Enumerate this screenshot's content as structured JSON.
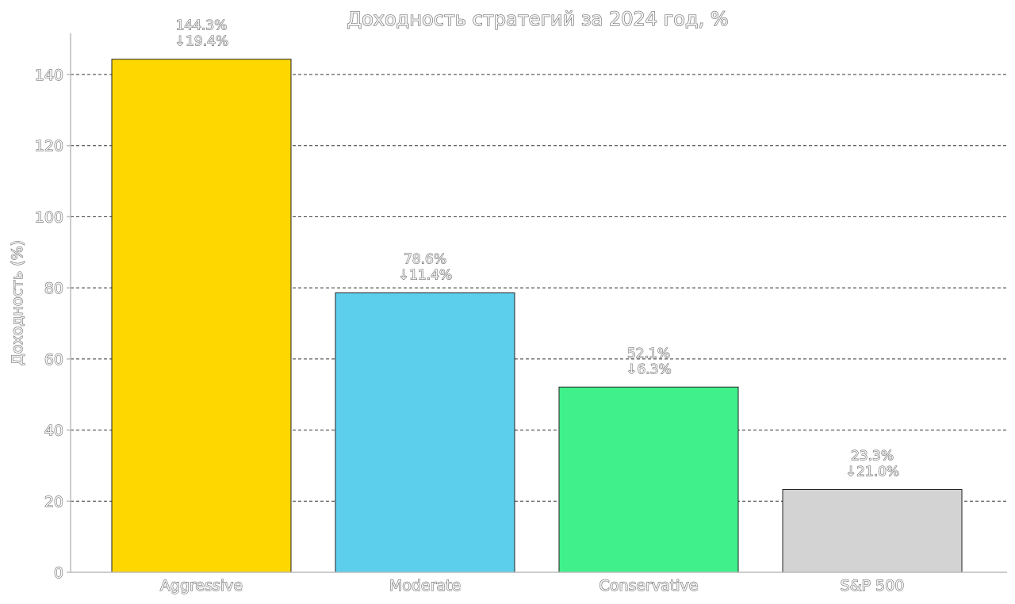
{
  "chart_data": {
    "type": "bar",
    "title": "Доходность стратегий за 2024 год, %",
    "xlabel": "",
    "ylabel": "Доходность (%)",
    "ylim": [
      0,
      150
    ],
    "yticks": [
      0,
      20,
      40,
      60,
      80,
      100,
      120,
      140
    ],
    "grid": true,
    "categories": [
      "Aggressive",
      "Moderate",
      "Conservative",
      "S&P 500"
    ],
    "values": [
      144.3,
      78.6,
      52.1,
      23.3
    ],
    "value_labels": [
      "144.3%",
      "78.6%",
      "52.1%",
      "23.3%"
    ],
    "drawdown_labels": [
      "↓19.4%",
      "↓11.4%",
      "↓6.3%",
      "↓21.0%"
    ],
    "colors": [
      "#ffd700",
      "#5bcfeb",
      "#40f08a",
      "#d3d3d3"
    ]
  }
}
